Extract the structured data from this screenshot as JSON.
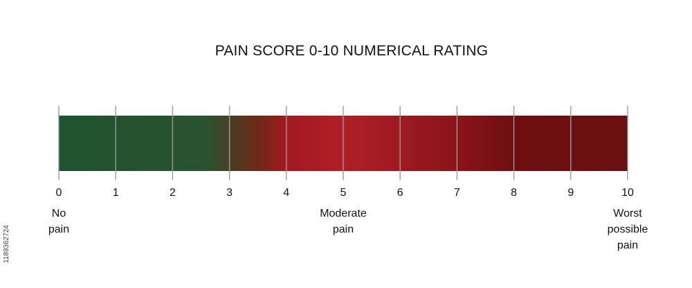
{
  "title": "PAIN SCORE 0-10 NUMERICAL RATING",
  "scale": {
    "min": 0,
    "max": 10,
    "ticks": [
      "0",
      "1",
      "2",
      "3",
      "4",
      "5",
      "6",
      "7",
      "8",
      "9",
      "10"
    ],
    "gradient_stops": [
      {
        "at": 0,
        "color": "#1f5230"
      },
      {
        "at": 2.6,
        "color": "#2a5230"
      },
      {
        "at": 3.5,
        "color": "#6b2a17"
      },
      {
        "at": 4.0,
        "color": "#a3191f"
      },
      {
        "at": 5.0,
        "color": "#b01f27"
      },
      {
        "at": 7.0,
        "color": "#8a1419"
      },
      {
        "at": 8.0,
        "color": "#6e0e10"
      },
      {
        "at": 10,
        "color": "#6b1011"
      }
    ]
  },
  "anchors": [
    {
      "value": 0,
      "lines": [
        "No",
        "pain"
      ]
    },
    {
      "value": 5,
      "lines": [
        "Moderate",
        "pain"
      ]
    },
    {
      "value": 10,
      "lines": [
        "Worst",
        "possible",
        "pain"
      ]
    }
  ],
  "side_id": "1189362724"
}
